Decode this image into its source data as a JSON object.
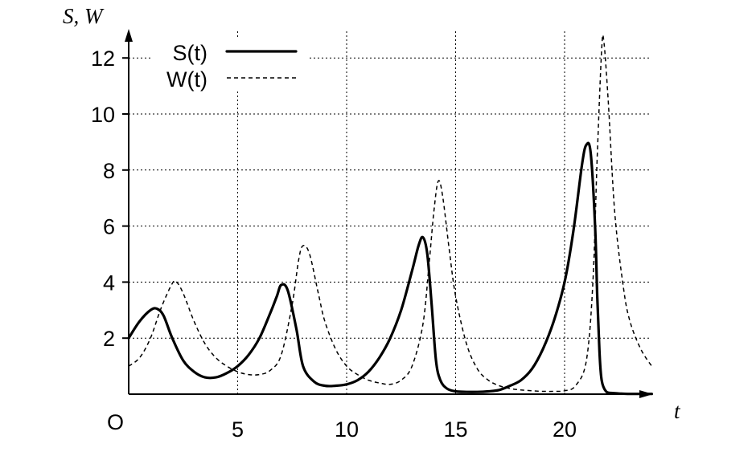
{
  "chart_data": {
    "type": "line",
    "title": "",
    "xlabel": "t",
    "ylabel": "S, W",
    "origin_label": "O",
    "xlim": [
      0,
      24
    ],
    "ylim": [
      0,
      12.8
    ],
    "x_ticks": [
      5,
      10,
      15,
      20
    ],
    "y_ticks": [
      2,
      4,
      6,
      8,
      10,
      12
    ],
    "grid": true,
    "legend": "top-left",
    "series": [
      {
        "name": "S(t)",
        "style": "solid-thick",
        "x": [
          0,
          0.5,
          1.0,
          1.3,
          1.6,
          2.0,
          2.5,
          3.0,
          3.5,
          4.0,
          4.5,
          5.0,
          5.5,
          6.0,
          6.5,
          6.8,
          7.0,
          7.3,
          7.7,
          8.0,
          8.5,
          9.0,
          9.5,
          10.0,
          10.5,
          11.0,
          11.5,
          12.0,
          12.5,
          13.0,
          13.3,
          13.5,
          13.7,
          13.9,
          14.1,
          14.3,
          14.6,
          15.0,
          15.5,
          16.0,
          16.5,
          17.0,
          17.5,
          18.0,
          18.5,
          19.0,
          19.5,
          20.0,
          20.4,
          20.8,
          21.0,
          21.2,
          21.4,
          21.5,
          21.6,
          21.7,
          21.9,
          22.2,
          22.6,
          23.0,
          23.5,
          24.0
        ],
        "y": [
          2.0,
          2.6,
          3.0,
          3.05,
          2.8,
          2.0,
          1.2,
          0.8,
          0.6,
          0.6,
          0.75,
          1.0,
          1.4,
          2.0,
          2.9,
          3.5,
          3.9,
          3.7,
          2.3,
          1.0,
          0.45,
          0.3,
          0.3,
          0.35,
          0.5,
          0.8,
          1.3,
          2.0,
          3.0,
          4.4,
          5.3,
          5.6,
          5.0,
          3.2,
          1.2,
          0.5,
          0.2,
          0.1,
          0.08,
          0.08,
          0.1,
          0.15,
          0.3,
          0.5,
          0.9,
          1.6,
          2.6,
          4.0,
          5.8,
          8.2,
          8.9,
          8.6,
          6.0,
          3.5,
          1.5,
          0.5,
          0.1,
          0.04,
          0.02,
          0.01,
          0.01,
          0.01
        ]
      },
      {
        "name": "W(t)",
        "style": "dashed-thin",
        "x": [
          0,
          0.5,
          1.0,
          1.5,
          2.0,
          2.2,
          2.5,
          3.0,
          3.5,
          4.0,
          4.5,
          5.0,
          5.5,
          6.0,
          6.5,
          7.0,
          7.5,
          7.8,
          8.0,
          8.3,
          8.7,
          9.0,
          9.5,
          10.0,
          10.5,
          11.0,
          11.5,
          12.0,
          12.5,
          13.0,
          13.5,
          13.8,
          14.0,
          14.2,
          14.4,
          14.7,
          15.0,
          15.5,
          16.0,
          16.5,
          17.0,
          17.5,
          18.0,
          18.5,
          19.0,
          19.5,
          20.0,
          20.5,
          21.0,
          21.3,
          21.5,
          21.7,
          21.8,
          22.0,
          22.3,
          22.7,
          23.0,
          23.5,
          24.0
        ],
        "y": [
          1.0,
          1.3,
          2.0,
          3.1,
          3.95,
          4.0,
          3.6,
          2.6,
          1.8,
          1.3,
          1.0,
          0.8,
          0.7,
          0.7,
          0.85,
          1.4,
          3.2,
          4.8,
          5.3,
          5.0,
          3.6,
          2.6,
          1.6,
          1.0,
          0.7,
          0.5,
          0.4,
          0.35,
          0.5,
          1.0,
          2.5,
          4.8,
          6.5,
          7.6,
          7.1,
          5.2,
          3.5,
          1.8,
          0.9,
          0.5,
          0.3,
          0.2,
          0.15,
          0.12,
          0.1,
          0.1,
          0.12,
          0.3,
          1.2,
          4.0,
          8.5,
          12.3,
          12.6,
          10.5,
          6.5,
          3.8,
          2.6,
          1.6,
          1.0
        ]
      }
    ]
  }
}
